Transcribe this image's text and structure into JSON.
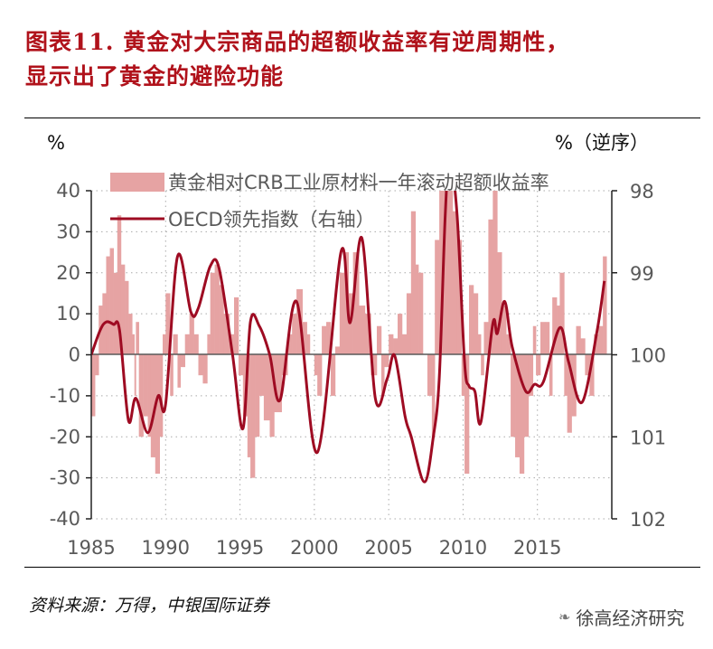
{
  "title": {
    "line1": "图表11. 黄金对大宗商品的超额收益率有逆周期性，",
    "line2": "显示出了黄金的避险功能"
  },
  "source": "资料来源：万得，中银国际证券",
  "watermark": {
    "text": "徐高经济研究",
    "icon": "wechat-icon"
  },
  "chart_data": {
    "type": "bar+line",
    "left_unit": "%",
    "right_unit": "%（逆序）",
    "ylim_left": [
      -40,
      40
    ],
    "yticks_left": [
      "40",
      "30",
      "20",
      "10",
      "0",
      "-10",
      "-20",
      "-30",
      "-40"
    ],
    "ylim_right": [
      98,
      102
    ],
    "right_axis_inverted": true,
    "yticks_right": [
      "98",
      "99",
      "100",
      "101",
      "102"
    ],
    "xlim": [
      1985,
      2020
    ],
    "xticks": [
      "1985",
      "1990",
      "1995",
      "2000",
      "2005",
      "2010",
      "2015"
    ],
    "grid": true,
    "legend_position": "top-left",
    "colors": {
      "bars": "#e6a3a3",
      "line": "#9e0b22",
      "axis": "#595959"
    },
    "series": [
      {
        "name": "黄金相对CRB工业原材料一年滚动超额收益率",
        "type": "bar",
        "axis": "left",
        "points": [
          [
            1985.0,
            -15
          ],
          [
            1985.25,
            -5
          ],
          [
            1985.5,
            12
          ],
          [
            1985.75,
            15
          ],
          [
            1986.0,
            24
          ],
          [
            1986.25,
            26
          ],
          [
            1986.5,
            20
          ],
          [
            1986.75,
            34
          ],
          [
            1987.0,
            22
          ],
          [
            1987.25,
            18
          ],
          [
            1987.5,
            10
          ],
          [
            1987.75,
            5
          ],
          [
            1987.9,
            -10
          ],
          [
            1988.0,
            8
          ],
          [
            1988.2,
            -20
          ],
          [
            1988.5,
            -15
          ],
          [
            1988.8,
            -20
          ],
          [
            1989.0,
            -25
          ],
          [
            1989.3,
            -29
          ],
          [
            1989.6,
            -20
          ],
          [
            1989.8,
            5
          ],
          [
            1990.0,
            15
          ],
          [
            1990.3,
            -10
          ],
          [
            1990.5,
            5
          ],
          [
            1990.8,
            -8
          ],
          [
            1991.0,
            -3
          ],
          [
            1991.3,
            5
          ],
          [
            1991.6,
            10
          ],
          [
            1991.9,
            5
          ],
          [
            1992.2,
            -5
          ],
          [
            1992.5,
            -7
          ],
          [
            1992.8,
            5
          ],
          [
            1993.0,
            20
          ],
          [
            1993.3,
            22
          ],
          [
            1993.6,
            17
          ],
          [
            1993.9,
            10
          ],
          [
            1994.3,
            5
          ],
          [
            1994.6,
            14
          ],
          [
            1994.9,
            -5
          ],
          [
            1995.2,
            -15
          ],
          [
            1995.5,
            -25
          ],
          [
            1995.7,
            -30
          ],
          [
            1996.0,
            -20
          ],
          [
            1996.3,
            -10
          ],
          [
            1996.6,
            -16
          ],
          [
            1997.0,
            -20
          ],
          [
            1997.3,
            -14
          ],
          [
            1997.8,
            -5
          ],
          [
            1998.2,
            5
          ],
          [
            1998.5,
            10
          ],
          [
            1998.8,
            16
          ],
          [
            1999.2,
            8
          ],
          [
            1999.5,
            5
          ],
          [
            1999.7,
            0
          ],
          [
            2000.0,
            -5
          ],
          [
            2000.2,
            -10
          ],
          [
            2000.5,
            7
          ],
          [
            2000.8,
            8
          ],
          [
            2001.1,
            -10
          ],
          [
            2001.4,
            2
          ],
          [
            2001.7,
            20
          ],
          [
            2002.0,
            25
          ],
          [
            2002.3,
            15
          ],
          [
            2002.6,
            25
          ],
          [
            2003.0,
            12
          ],
          [
            2003.4,
            10
          ],
          [
            2003.8,
            -5
          ],
          [
            2004.2,
            7
          ],
          [
            2004.5,
            -10
          ],
          [
            2004.7,
            -3
          ],
          [
            2005.0,
            5
          ],
          [
            2005.3,
            4
          ],
          [
            2005.6,
            10
          ],
          [
            2005.9,
            5
          ],
          [
            2006.2,
            15
          ],
          [
            2006.5,
            35
          ],
          [
            2006.8,
            22
          ],
          [
            2007.0,
            20
          ],
          [
            2007.3,
            0
          ],
          [
            2007.6,
            -10
          ],
          [
            2007.9,
            -20
          ],
          [
            2008.1,
            28
          ],
          [
            2008.4,
            40
          ],
          [
            2008.7,
            40
          ],
          [
            2009.0,
            40
          ],
          [
            2009.3,
            35
          ],
          [
            2009.6,
            28
          ],
          [
            2009.9,
            -10
          ],
          [
            2010.1,
            -29
          ],
          [
            2010.4,
            17
          ],
          [
            2010.7,
            15
          ],
          [
            2011.0,
            5
          ],
          [
            2011.2,
            -5
          ],
          [
            2011.4,
            8
          ],
          [
            2011.7,
            33
          ],
          [
            2012.0,
            40
          ],
          [
            2012.3,
            25
          ],
          [
            2012.6,
            12
          ],
          [
            2012.9,
            5
          ],
          [
            2013.2,
            -20
          ],
          [
            2013.5,
            -25
          ],
          [
            2013.8,
            -29
          ],
          [
            2014.1,
            -20
          ],
          [
            2014.4,
            -10
          ],
          [
            2014.7,
            7
          ],
          [
            2014.9,
            -5
          ],
          [
            2015.2,
            8
          ],
          [
            2015.5,
            8
          ],
          [
            2015.8,
            -10
          ],
          [
            2016.0,
            14
          ],
          [
            2016.3,
            12
          ],
          [
            2016.5,
            20
          ],
          [
            2016.8,
            -10
          ],
          [
            2017.0,
            -19
          ],
          [
            2017.3,
            -15
          ],
          [
            2017.6,
            7
          ],
          [
            2017.9,
            4
          ],
          [
            2018.2,
            -5
          ],
          [
            2018.5,
            -10
          ],
          [
            2018.8,
            5
          ],
          [
            2019.1,
            7
          ],
          [
            2019.4,
            24
          ]
        ]
      },
      {
        "name": "OECD领先指数（右轴）",
        "type": "line",
        "axis": "right",
        "points": [
          [
            1985.0,
            100.0
          ],
          [
            1985.6,
            99.7
          ],
          [
            1986.0,
            99.6
          ],
          [
            1986.5,
            99.63
          ],
          [
            1986.9,
            99.7
          ],
          [
            1987.5,
            100.8
          ],
          [
            1988.0,
            100.53
          ],
          [
            1988.8,
            100.95
          ],
          [
            1989.5,
            100.5
          ],
          [
            1990.0,
            100.6
          ],
          [
            1990.8,
            98.8
          ],
          [
            1991.7,
            99.48
          ],
          [
            1992.2,
            99.43
          ],
          [
            1993.0,
            98.92
          ],
          [
            1993.6,
            98.95
          ],
          [
            1994.5,
            100.0
          ],
          [
            1995.2,
            100.9
          ],
          [
            1995.7,
            99.6
          ],
          [
            1996.3,
            99.65
          ],
          [
            1997.0,
            100.0
          ],
          [
            1997.7,
            100.55
          ],
          [
            1998.8,
            99.35
          ],
          [
            2000.2,
            101.19
          ],
          [
            2001.8,
            98.74
          ],
          [
            2002.4,
            99.61
          ],
          [
            2003.2,
            98.58
          ],
          [
            2004.1,
            100.53
          ],
          [
            2004.9,
            100.29
          ],
          [
            2005.4,
            100.01
          ],
          [
            2006.1,
            100.75
          ],
          [
            2006.5,
            100.99
          ],
          [
            2007.4,
            101.55
          ],
          [
            2008.0,
            101.0
          ],
          [
            2008.4,
            100.28
          ],
          [
            2008.8,
            98.3
          ],
          [
            2009.1,
            97.6
          ],
          [
            2009.6,
            98.3
          ],
          [
            2010.1,
            100.09
          ],
          [
            2010.4,
            100.38
          ],
          [
            2010.8,
            100.45
          ],
          [
            2011.2,
            100.82
          ],
          [
            2012.0,
            99.62
          ],
          [
            2012.3,
            99.74
          ],
          [
            2012.8,
            99.35
          ],
          [
            2013.3,
            99.9
          ],
          [
            2014.2,
            100.44
          ],
          [
            2014.8,
            100.36
          ],
          [
            2015.4,
            100.33
          ],
          [
            2016.5,
            99.67
          ],
          [
            2017.1,
            100.09
          ],
          [
            2018.0,
            100.58
          ],
          [
            2019.0,
            99.72
          ],
          [
            2019.5,
            99.1
          ]
        ]
      }
    ]
  }
}
